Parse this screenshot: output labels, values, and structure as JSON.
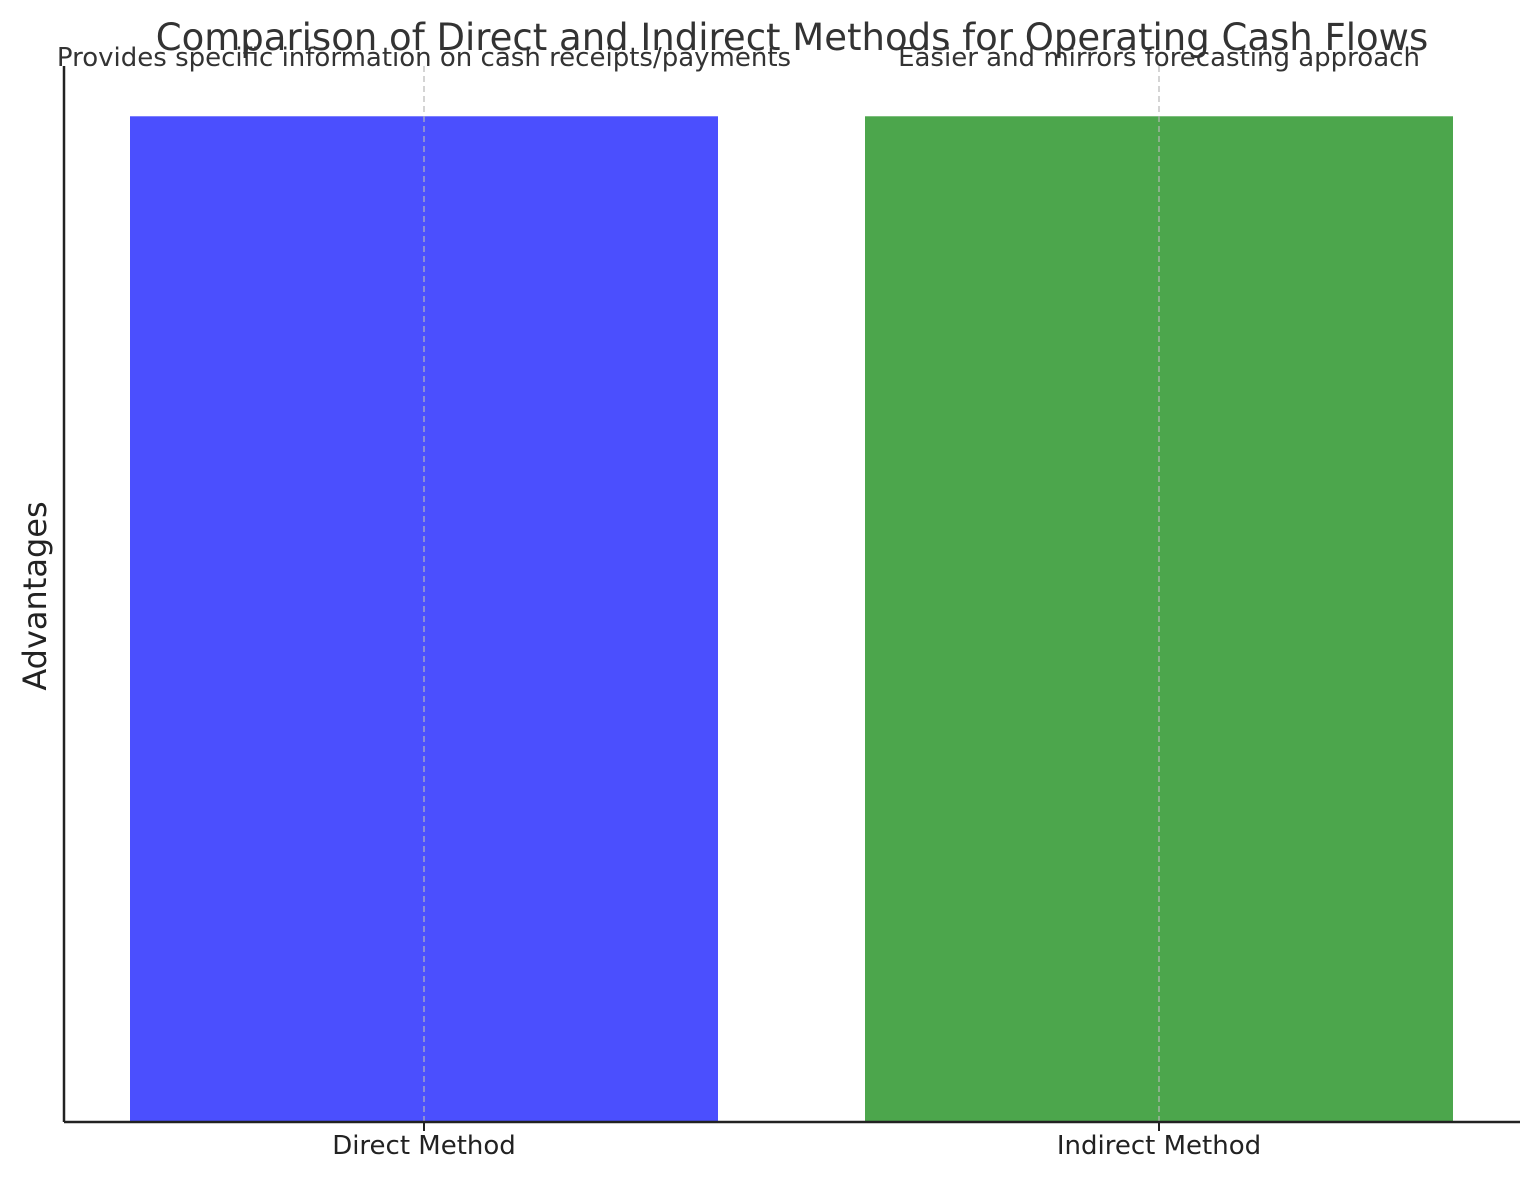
{
  "chart_data": {
    "type": "bar",
    "title": "Comparison of Direct and Indirect Methods for Operating Cash Flows",
    "xlabel": "",
    "ylabel": "Advantages",
    "categories": [
      "Direct Method",
      "Indirect Method"
    ],
    "values": [
      1,
      1
    ],
    "ylim": [
      0,
      1.05
    ],
    "annotations": [
      "Provides specific information on cash receipts/payments",
      "Easier and mirrors forecasting approach"
    ],
    "colors": [
      "#4b4ffe",
      "#4ca64c"
    ],
    "grid": "x-dashed",
    "y_ticks_shown": false
  }
}
